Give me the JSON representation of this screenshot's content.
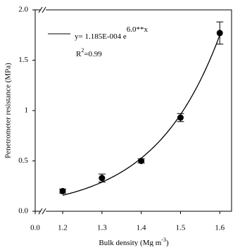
{
  "chart_data": {
    "type": "scatter",
    "x_label": [
      "Bulk density (Mg m",
      "-3",
      ")"
    ],
    "y_label": "Penetrometer resistance (MPa)",
    "x": [
      1.2,
      1.3,
      1.4,
      1.5,
      1.6
    ],
    "series": [
      {
        "values": [
          0.2,
          0.33,
          0.5,
          0.93,
          1.77
        ],
        "errors": [
          0.02,
          0.04,
          0.02,
          0.04,
          0.11
        ],
        "color": "#000000"
      }
    ],
    "fit": {
      "a": 0.0001185,
      "b": 6.0,
      "range": [
        1.2,
        1.6
      ],
      "color": "#000000",
      "equation": [
        "y= 1.185E-004 e",
        "6.0**x"
      ],
      "r2": [
        "R",
        "2",
        "=0.99"
      ]
    },
    "x_axis_break": true,
    "xlim": [
      1.13,
      1.63
    ],
    "xticks": [
      {
        "value": 0,
        "label": "0.0"
      },
      1.2,
      1.3,
      1.4,
      1.5,
      1.6
    ],
    "ylim": [
      0,
      2
    ],
    "yticks": [
      {
        "value": 0,
        "label": "0.0"
      },
      0.5,
      1.0,
      {
        "value": 1.5,
        "label": "1.5"
      },
      {
        "value": 2,
        "label": "2.0"
      }
    ]
  }
}
